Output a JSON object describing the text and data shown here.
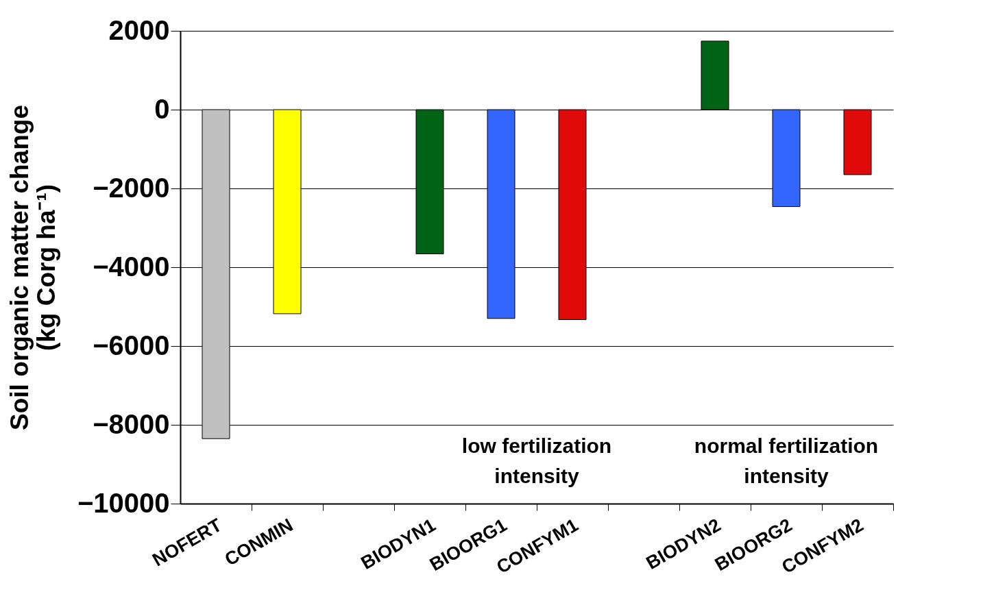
{
  "chart_data": {
    "type": "bar",
    "ylabel": [
      "Soil organic matter change",
      "(kg Corg ha⁻¹)"
    ],
    "categories": [
      "NOFERT",
      "CONMIN",
      null,
      "BIODYN1",
      "BIOORG1",
      "CONFYM1",
      null,
      "BIODYN2",
      "BIOORG2",
      "CONFYM2"
    ],
    "values": [
      -8350,
      -5180,
      null,
      -3660,
      -5300,
      -5330,
      null,
      1740,
      -2460,
      -1650
    ],
    "colors": [
      "#c0c0c0",
      "#ffff00",
      "#ffffff",
      "#006414",
      "#3366ff",
      "#e00a0a",
      "#ffffff",
      "#006414",
      "#3366ff",
      "#e00a0a"
    ],
    "ylim": [
      -10000,
      2000
    ],
    "yticks": [
      -10000,
      -8000,
      -6000,
      -4000,
      -2000,
      0,
      2000
    ],
    "grid": "y",
    "annotations": [
      "low fertilization intensity",
      "normal fertilization intensity"
    ]
  }
}
